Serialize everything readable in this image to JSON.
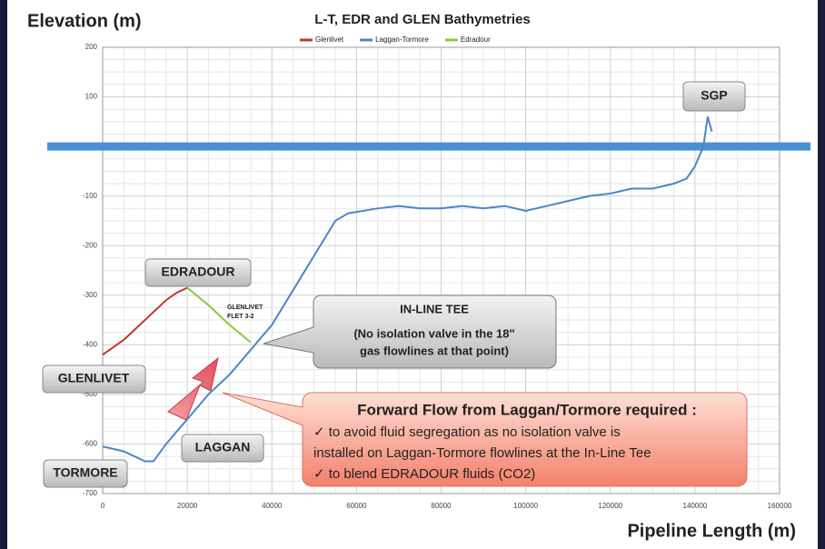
{
  "chart_data": {
    "type": "line",
    "title": "L-T, EDR and GLEN Bathymetries",
    "ylabel": "Elevation (m)",
    "xlabel": "Pipeline Length (m)",
    "xlim": [
      0,
      160000
    ],
    "xticks": [
      0,
      20000,
      40000,
      60000,
      80000,
      100000,
      120000,
      140000,
      160000
    ],
    "ylim": [
      -700,
      200
    ],
    "yticks": [
      -700,
      -600,
      -500,
      -400,
      -300,
      -200,
      -100,
      0,
      100,
      200
    ],
    "grid": true,
    "legend": "top",
    "hline": 0,
    "series": [
      {
        "name": "Glenlivet",
        "color": "#c0392b",
        "x": [
          0,
          2500,
          5000,
          7500,
          10000,
          12500,
          15000,
          17500,
          20000
        ],
        "values": [
          -420,
          -405,
          -390,
          -370,
          -350,
          -330,
          -310,
          -295,
          -285
        ]
      },
      {
        "name": "Laggan-Tormore",
        "color": "#4a86c8",
        "x": [
          0,
          5000,
          10000,
          12000,
          15000,
          20000,
          25000,
          30000,
          35000,
          40000,
          45000,
          50000,
          55000,
          58000,
          65000,
          70000,
          75000,
          80000,
          85000,
          90000,
          95000,
          100000,
          105000,
          110000,
          115000,
          120000,
          125000,
          130000,
          135000,
          138000,
          140000,
          142000,
          143000,
          144000
        ],
        "values": [
          -605,
          -615,
          -635,
          -635,
          -600,
          -550,
          -500,
          -460,
          -410,
          -360,
          -290,
          -220,
          -150,
          -135,
          -125,
          -120,
          -125,
          -125,
          -120,
          -125,
          -120,
          -130,
          -120,
          -110,
          -100,
          -95,
          -85,
          -85,
          -75,
          -65,
          -40,
          0,
          60,
          30
        ]
      },
      {
        "name": "Edradour",
        "color": "#8dc63f",
        "x": [
          20000,
          25000,
          30000,
          35000
        ],
        "values": [
          -285,
          -320,
          -360,
          -395
        ]
      }
    ],
    "annotations": {
      "sgp": "SGP",
      "edradour": "EDRADOUR",
      "glenlivet": "GLENLIVET",
      "tormore": "TORMORE",
      "laggan": "LAGGAN",
      "flet": [
        "GLENLIVET",
        "FLET 3-2"
      ],
      "tee": [
        "IN-LINE TEE",
        "(No isolation valve in the 18\"",
        "gas flowlines at that point)"
      ],
      "flow": [
        "Forward Flow from Laggan/Tormore required :",
        "✓ to avoid fluid segregation as no isolation valve is",
        "installed on Laggan-Tormore flowlines at the In-Line Tee",
        "✓ to blend EDRADOUR fluids (CO2)"
      ]
    }
  }
}
